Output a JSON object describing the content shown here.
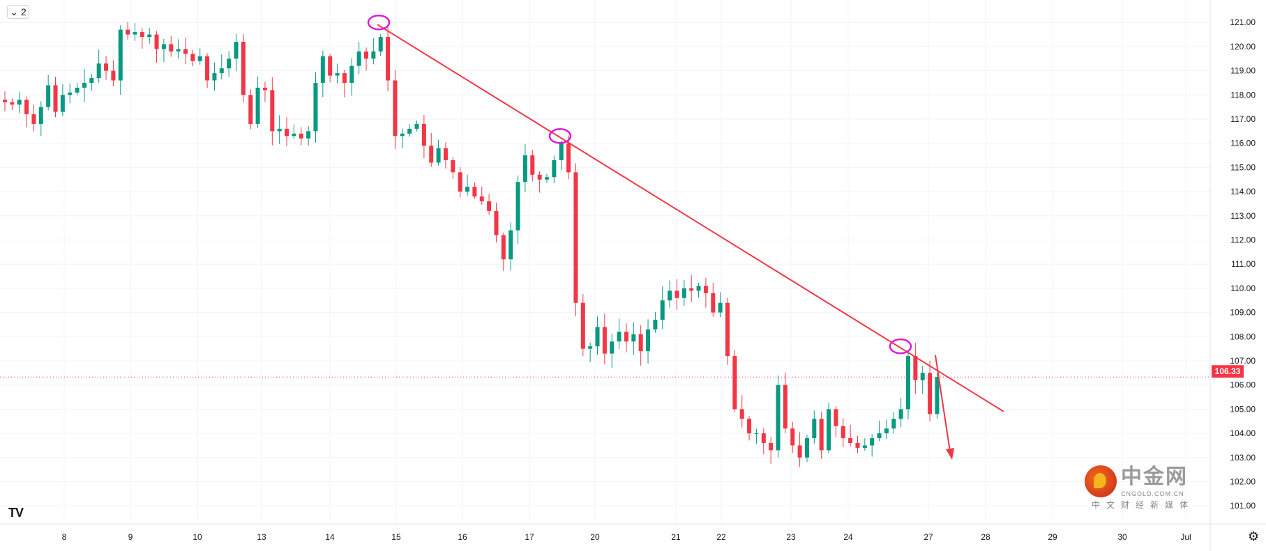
{
  "toolbar": {
    "collapse_count": "2",
    "chevron": "chevron-down-icon"
  },
  "logo": {
    "text": "TV"
  },
  "watermark": {
    "title": "中金网",
    "subtitle": "CNGOLD.COM.CN",
    "tagline": "中文财经新媒体"
  },
  "colors": {
    "up": "#089981",
    "down": "#f23645",
    "trendline": "#f23645",
    "marker": "#d81bd8",
    "grid": "#f0f3fa"
  },
  "chart_data": {
    "type": "candlestick",
    "y_ticks": [
      "101.00",
      "102.00",
      "103.00",
      "104.00",
      "105.00",
      "106.00",
      "107.00",
      "108.00",
      "109.00",
      "110.00",
      "111.00",
      "112.00",
      "113.00",
      "114.00",
      "115.00",
      "116.00",
      "117.00",
      "118.00",
      "119.00",
      "120.00",
      "121.00"
    ],
    "ylim": [
      100.5,
      122
    ],
    "x_ticks": [
      "8",
      "9",
      "10",
      "13",
      "14",
      "15",
      "16",
      "17",
      "20",
      "21",
      "22",
      "23",
      "24",
      "27",
      "28",
      "29",
      "30",
      "Jul"
    ],
    "last_price": "106.33",
    "grid": true,
    "closes": [
      117.7,
      117.6,
      117.8,
      117.2,
      116.8,
      117.5,
      118.4,
      117.3,
      118.0,
      118.1,
      118.3,
      118.5,
      118.7,
      119.3,
      119.0,
      118.6,
      120.7,
      120.5,
      120.6,
      120.4,
      120.5,
      119.9,
      120.1,
      119.8,
      119.9,
      119.7,
      119.4,
      119.6,
      118.6,
      118.9,
      119.1,
      119.5,
      120.2,
      118.0,
      116.8,
      118.3,
      118.2,
      116.5,
      116.6,
      116.3,
      116.4,
      116.2,
      116.5,
      118.5,
      119.6,
      118.8,
      118.9,
      118.5,
      119.2,
      119.8,
      119.5,
      119.8,
      120.4,
      118.6,
      116.3,
      116.4,
      116.6,
      116.8,
      115.9,
      115.2,
      115.8,
      115.3,
      114.8,
      114.0,
      114.2,
      113.8,
      113.6,
      113.2,
      112.2,
      111.2,
      112.4,
      114.4,
      115.5,
      114.7,
      114.5,
      114.6,
      115.3,
      116.0,
      114.8,
      109.4,
      107.5,
      107.6,
      108.4,
      107.3,
      107.8,
      108.2,
      107.8,
      108.1,
      107.4,
      108.3,
      108.7,
      109.5,
      109.9,
      109.6,
      110.0,
      109.9,
      110.1,
      109.8,
      109.0,
      109.4,
      107.2,
      105.0,
      104.6,
      104.0,
      104.0,
      103.6,
      103.3,
      106.0,
      104.2,
      103.5,
      103.0,
      103.8,
      104.6,
      103.3,
      105.0,
      104.3,
      103.8,
      103.6,
      103.4,
      103.5,
      103.8,
      104.0,
      104.2,
      104.6,
      105.0,
      107.2,
      106.2,
      106.5,
      104.8,
      106.33
    ],
    "annotations": {
      "trendline": {
        "from_price": 121.0,
        "to_price": 104.9
      },
      "touch_points": [
        121.0,
        116.3,
        107.6
      ],
      "arrow": "down"
    }
  }
}
